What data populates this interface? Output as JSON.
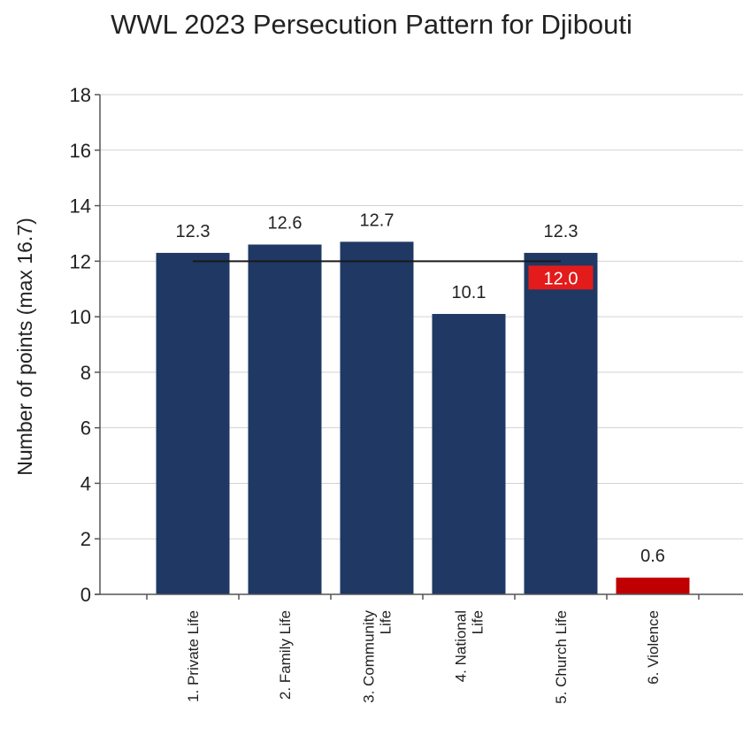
{
  "chart_data": {
    "type": "bar",
    "title": "WWL 2023 Persecution Pattern for Djibouti",
    "ylabel": "Number of points (max 16.7)",
    "xlabel": "",
    "categories": [
      [
        "1. Private Life"
      ],
      [
        "2. Family Life"
      ],
      [
        "3. Community",
        "Life"
      ],
      [
        "4. National",
        "Life"
      ],
      [
        "5. Church Life"
      ],
      [
        "6. Violence"
      ]
    ],
    "values": [
      12.3,
      12.6,
      12.7,
      10.1,
      12.3,
      0.6
    ],
    "value_labels": [
      "12.3",
      "12.6",
      "12.7",
      "10.1",
      "12.3",
      "0.6"
    ],
    "bar_colors": [
      "#1f3864",
      "#1f3864",
      "#1f3864",
      "#1f3864",
      "#1f3864",
      "#c00000"
    ],
    "average": {
      "value": 12.0,
      "label": "12.0",
      "label_color": "#e31b1b"
    },
    "ylim": [
      0,
      18
    ],
    "yticks": [
      0,
      2,
      4,
      6,
      8,
      10,
      12,
      14,
      16,
      18
    ],
    "grid": true
  }
}
